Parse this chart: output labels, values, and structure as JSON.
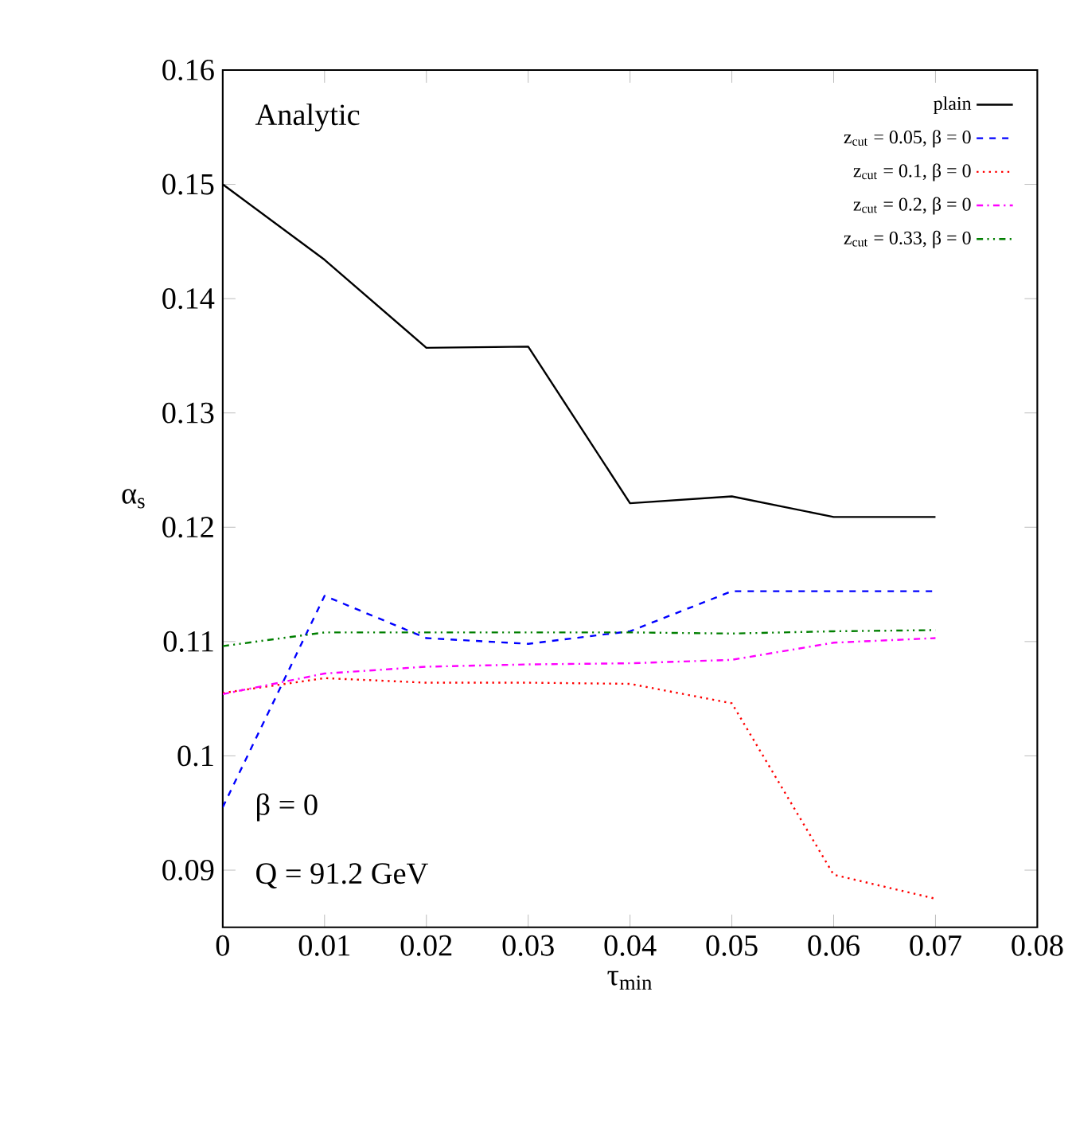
{
  "chart_data": {
    "type": "line",
    "xlabel": "τ$_{min}$",
    "ylabel": "α$_{s}$",
    "x": [
      0,
      0.01,
      0.02,
      0.03,
      0.04,
      0.05,
      0.06,
      0.07
    ],
    "xlim": [
      0,
      0.08
    ],
    "xticks": [
      0,
      0.01,
      0.02,
      0.03,
      0.04,
      0.05,
      0.06,
      0.07,
      0.08
    ],
    "ylim": [
      0.085,
      0.16
    ],
    "yticks": [
      0.09,
      0.1,
      0.11,
      0.12,
      0.13,
      0.14,
      0.15,
      0.16
    ],
    "legend": "top right",
    "grid": false,
    "annotations": [
      "Analytic",
      "β = 0",
      "Q = 91.2 GeV"
    ],
    "series": [
      {
        "name": "plain",
        "color": "#000000",
        "line_style": "solid",
        "values": [
          0.15,
          0.1434,
          0.1357,
          0.1358,
          0.1221,
          0.1227,
          0.1209,
          0.1209
        ]
      },
      {
        "name": "z$_{cut}$ = 0.05, β = 0",
        "color": "#0000ff",
        "line_style": "dashed",
        "values": [
          0.0955,
          0.114,
          0.1103,
          0.1098,
          0.1109,
          0.1144,
          0.1144,
          0.1144
        ]
      },
      {
        "name": "z$_{cut}$ = 0.1, β = 0",
        "color": "#ff0000",
        "line_style": "dotted",
        "values": [
          0.1055,
          0.1068,
          0.1064,
          0.1064,
          0.1063,
          0.1046,
          0.0896,
          0.0875
        ]
      },
      {
        "name": "z$_{cut}$ = 0.2, β = 0",
        "color": "#ff00ff",
        "line_style": "dashdotted",
        "values": [
          0.1054,
          0.1072,
          0.1078,
          0.108,
          0.1081,
          0.1084,
          0.1099,
          0.1103
        ]
      },
      {
        "name": "z$_{cut}$ = 0.33, β = 0",
        "color": "#007f00",
        "line_style": "dashdotdotted",
        "values": [
          0.1096,
          0.1108,
          0.1108,
          0.1108,
          0.1108,
          0.1107,
          0.1109,
          0.111
        ]
      }
    ]
  }
}
